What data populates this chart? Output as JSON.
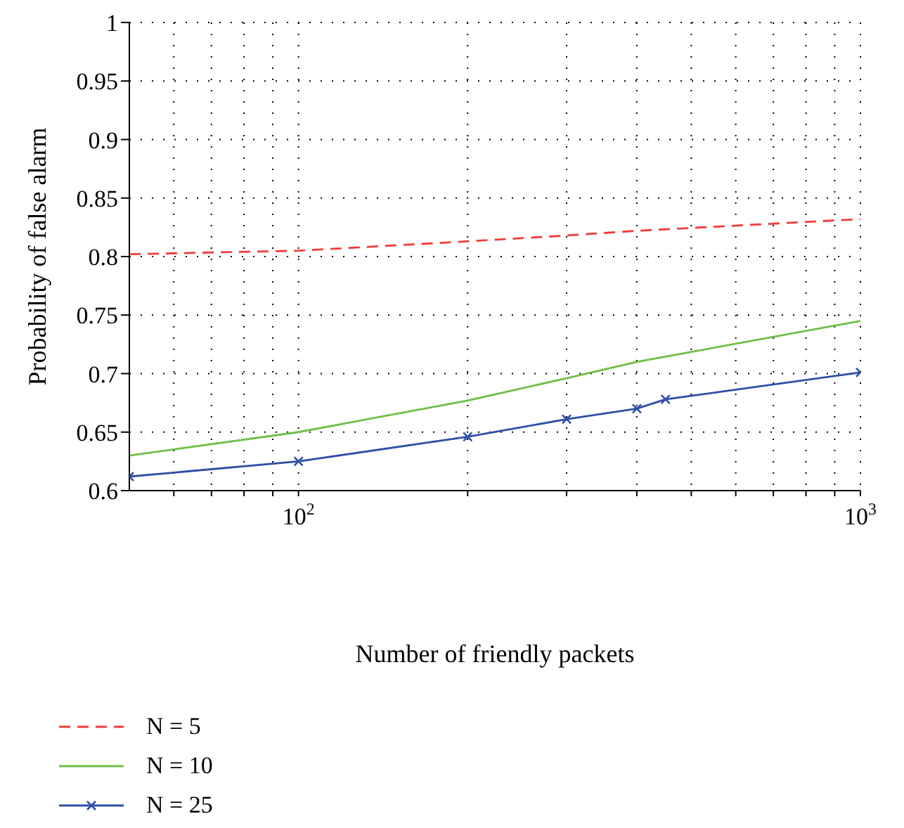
{
  "chart_data": {
    "type": "line",
    "xlabel": "Number of friendly packets",
    "ylabel": "Probability of false alarm",
    "log": "x",
    "grid": true,
    "legend": "bottom",
    "xlim": [
      50,
      1000
    ],
    "xticks": [
      {
        "value": 60,
        "label": null
      },
      {
        "value": 70,
        "label": null
      },
      {
        "value": 80,
        "label": null
      },
      {
        "value": 90,
        "label": null
      },
      {
        "value": 100,
        "label": "10$^{2}$"
      },
      {
        "value": 200,
        "label": null
      },
      {
        "value": 300,
        "label": null
      },
      {
        "value": 400,
        "label": null
      },
      {
        "value": 500,
        "label": null
      },
      {
        "value": 600,
        "label": null
      },
      {
        "value": 700,
        "label": null
      },
      {
        "value": 800,
        "label": null
      },
      {
        "value": 900,
        "label": null
      },
      {
        "value": 1000,
        "label": "10$^{3}$"
      }
    ],
    "ylim": [
      0.6,
      1
    ],
    "yticks": [
      0.6,
      0.65,
      0.7,
      0.75,
      0.8,
      0.85,
      0.9,
      0.95,
      1
    ],
    "series": [
      {
        "name": "N = 5",
        "color": "#f23b3b",
        "line_style": "dashed",
        "marker": "none",
        "x": [
          50,
          100,
          200,
          300,
          400,
          1000
        ],
        "values": [
          0.802,
          0.805,
          0.813,
          0.818,
          0.822,
          0.832
        ]
      },
      {
        "name": "N = 10",
        "color": "#6cbf45",
        "line_style": "solid",
        "marker": "none",
        "x": [
          50,
          100,
          200,
          300,
          400,
          1000
        ],
        "values": [
          0.63,
          0.65,
          0.677,
          0.696,
          0.71,
          0.745
        ]
      },
      {
        "name": "N = 25",
        "color": "#2d4fa6",
        "line_style": "solid",
        "marker": "cross",
        "x": [
          50,
          100,
          200,
          300,
          400,
          450,
          1000
        ],
        "values": [
          0.612,
          0.625,
          0.646,
          0.661,
          0.67,
          0.678,
          0.701
        ]
      }
    ]
  }
}
